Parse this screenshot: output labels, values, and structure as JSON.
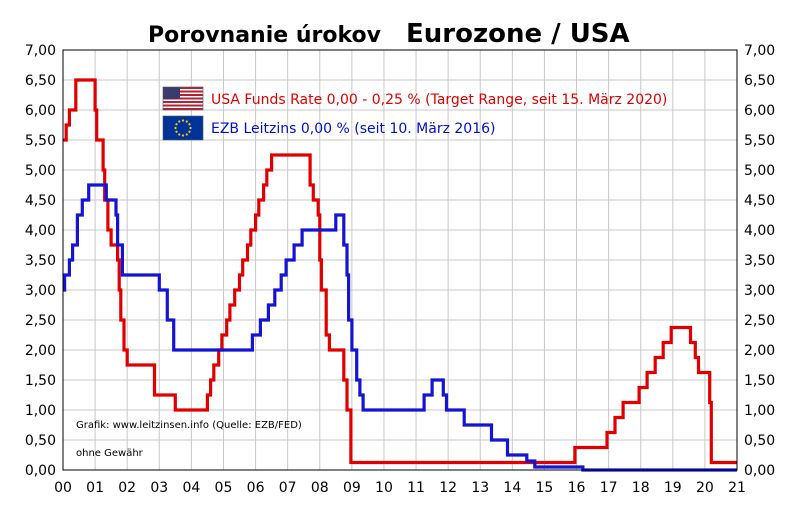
{
  "colors": {
    "usa": "#e00000",
    "ezb": "#1414d2",
    "grid": "#c8c8c8",
    "axis": "#000000",
    "background": "#ffffff"
  },
  "chart_data": {
    "type": "line",
    "title_part1": "Porovnanie úrokov",
    "title_part2": "Eurozone / USA",
    "x_tick_labels": [
      "00",
      "01",
      "02",
      "03",
      "04",
      "05",
      "06",
      "07",
      "08",
      "09",
      "10",
      "11",
      "12",
      "13",
      "14",
      "15",
      "16",
      "17",
      "18",
      "19",
      "20",
      "21"
    ],
    "y_tick_labels": [
      "0,00",
      "0,50",
      "1,00",
      "1,50",
      "2,00",
      "2,50",
      "3,00",
      "3,50",
      "4,00",
      "4,50",
      "5,00",
      "5,50",
      "6,00",
      "6,50",
      "7,00"
    ],
    "xlim": [
      2000,
      2021
    ],
    "ylim": [
      0,
      7
    ],
    "grid": true,
    "legend_position": "top-center",
    "annotations": [
      "Grafik: www.leitzinsen.info (Quelle: EZB/FED)",
      "ohne Gewähr"
    ],
    "series": [
      {
        "name": "USA Funds Rate 0,00 - 0,25 % (Target Range, seit 15. März 2020)",
        "icon": "us-flag-icon",
        "step": [
          [
            2000.0,
            5.5
          ],
          [
            2000.1,
            5.75
          ],
          [
            2000.2,
            6.0
          ],
          [
            2000.4,
            6.5
          ],
          [
            2001.0,
            6.0
          ],
          [
            2001.05,
            5.5
          ],
          [
            2001.25,
            5.0
          ],
          [
            2001.3,
            4.5
          ],
          [
            2001.4,
            4.0
          ],
          [
            2001.5,
            3.75
          ],
          [
            2001.7,
            3.5
          ],
          [
            2001.75,
            3.0
          ],
          [
            2001.8,
            2.5
          ],
          [
            2001.9,
            2.0
          ],
          [
            2002.0,
            1.75
          ],
          [
            2002.85,
            1.25
          ],
          [
            2003.5,
            1.0
          ],
          [
            2004.5,
            1.25
          ],
          [
            2004.6,
            1.5
          ],
          [
            2004.7,
            1.75
          ],
          [
            2004.85,
            2.0
          ],
          [
            2004.95,
            2.25
          ],
          [
            2005.1,
            2.5
          ],
          [
            2005.2,
            2.75
          ],
          [
            2005.35,
            3.0
          ],
          [
            2005.5,
            3.25
          ],
          [
            2005.6,
            3.5
          ],
          [
            2005.75,
            3.75
          ],
          [
            2005.85,
            4.0
          ],
          [
            2006.0,
            4.25
          ],
          [
            2006.1,
            4.5
          ],
          [
            2006.25,
            4.75
          ],
          [
            2006.35,
            5.0
          ],
          [
            2006.5,
            5.25
          ],
          [
            2007.7,
            4.75
          ],
          [
            2007.8,
            4.5
          ],
          [
            2007.95,
            4.25
          ],
          [
            2008.0,
            3.5
          ],
          [
            2008.05,
            3.0
          ],
          [
            2008.2,
            2.25
          ],
          [
            2008.3,
            2.0
          ],
          [
            2008.75,
            1.5
          ],
          [
            2008.85,
            1.0
          ],
          [
            2008.97,
            0.125
          ],
          [
            2015.95,
            0.375
          ],
          [
            2016.95,
            0.625
          ],
          [
            2017.2,
            0.875
          ],
          [
            2017.45,
            1.125
          ],
          [
            2017.95,
            1.375
          ],
          [
            2018.2,
            1.625
          ],
          [
            2018.45,
            1.875
          ],
          [
            2018.7,
            2.125
          ],
          [
            2018.95,
            2.375
          ],
          [
            2019.55,
            2.125
          ],
          [
            2019.7,
            1.875
          ],
          [
            2019.8,
            1.625
          ],
          [
            2020.15,
            1.125
          ],
          [
            2020.2,
            0.125
          ],
          [
            2021.0,
            0.125
          ]
        ]
      },
      {
        "name": "EZB Leitzins 0,00 %  (seit 10. März 2016)",
        "icon": "eu-flag-icon",
        "step": [
          [
            2000.0,
            3.0
          ],
          [
            2000.05,
            3.25
          ],
          [
            2000.2,
            3.5
          ],
          [
            2000.3,
            3.75
          ],
          [
            2000.45,
            4.25
          ],
          [
            2000.6,
            4.5
          ],
          [
            2000.8,
            4.75
          ],
          [
            2001.35,
            4.5
          ],
          [
            2001.65,
            4.25
          ],
          [
            2001.7,
            3.75
          ],
          [
            2001.85,
            3.25
          ],
          [
            2003.0,
            3.0
          ],
          [
            2003.25,
            2.5
          ],
          [
            2003.45,
            2.0
          ],
          [
            2005.9,
            2.25
          ],
          [
            2006.15,
            2.5
          ],
          [
            2006.4,
            2.75
          ],
          [
            2006.6,
            3.0
          ],
          [
            2006.8,
            3.25
          ],
          [
            2006.95,
            3.5
          ],
          [
            2007.2,
            3.75
          ],
          [
            2007.45,
            4.0
          ],
          [
            2008.5,
            4.25
          ],
          [
            2008.75,
            3.75
          ],
          [
            2008.85,
            3.25
          ],
          [
            2008.9,
            2.5
          ],
          [
            2009.0,
            2.0
          ],
          [
            2009.15,
            1.5
          ],
          [
            2009.25,
            1.25
          ],
          [
            2009.35,
            1.0
          ],
          [
            2011.25,
            1.25
          ],
          [
            2011.5,
            1.5
          ],
          [
            2011.85,
            1.25
          ],
          [
            2011.95,
            1.0
          ],
          [
            2012.5,
            0.75
          ],
          [
            2013.35,
            0.5
          ],
          [
            2013.85,
            0.25
          ],
          [
            2014.45,
            0.15
          ],
          [
            2014.7,
            0.05
          ],
          [
            2016.2,
            0.0
          ],
          [
            2021.0,
            0.0
          ]
        ]
      }
    ]
  }
}
